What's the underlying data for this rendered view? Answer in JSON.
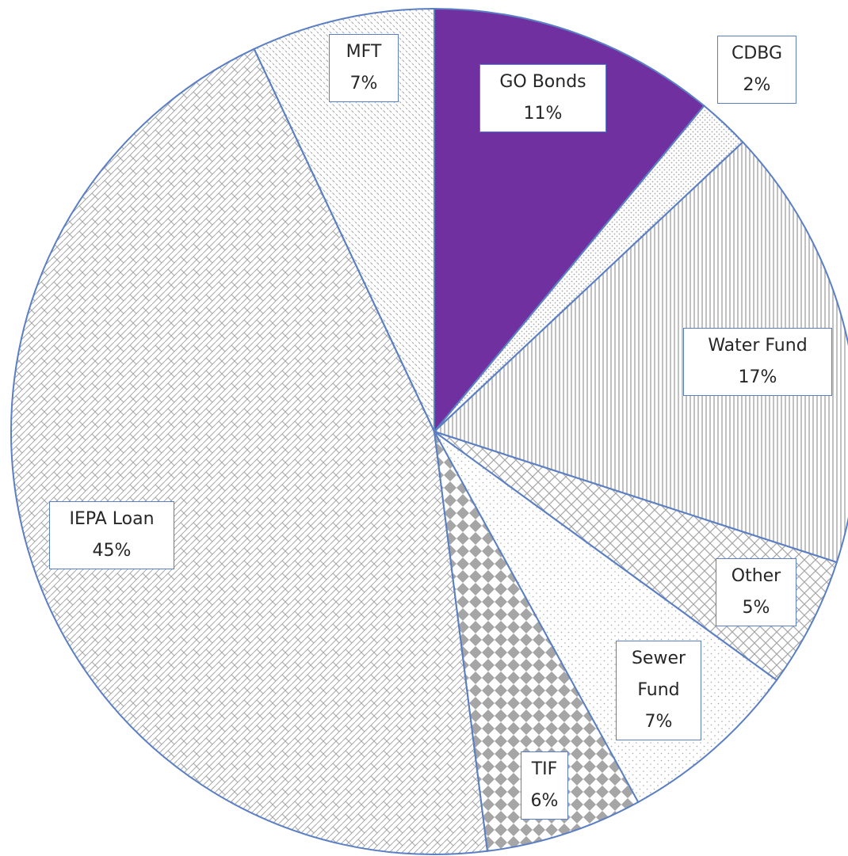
{
  "chart_data": {
    "type": "pie",
    "categories": [
      "GO Bonds",
      "CDBG",
      "Water Fund",
      "Other",
      "Sewer Fund",
      "TIF",
      "IEPA Loan",
      "MFT"
    ],
    "values": [
      11,
      2,
      17,
      5,
      7,
      6,
      45,
      7
    ],
    "value_labels": [
      "11%",
      "2%",
      "17%",
      "5%",
      "7%",
      "6%",
      "45%",
      "7%"
    ],
    "colors": [
      "#7030a0",
      "#a6a6a6",
      "#a6a6a6",
      "#a6a6a6",
      "#a6a6a6",
      "#a6a6a6",
      "#a6a6a6",
      "#a6a6a6"
    ]
  }
}
